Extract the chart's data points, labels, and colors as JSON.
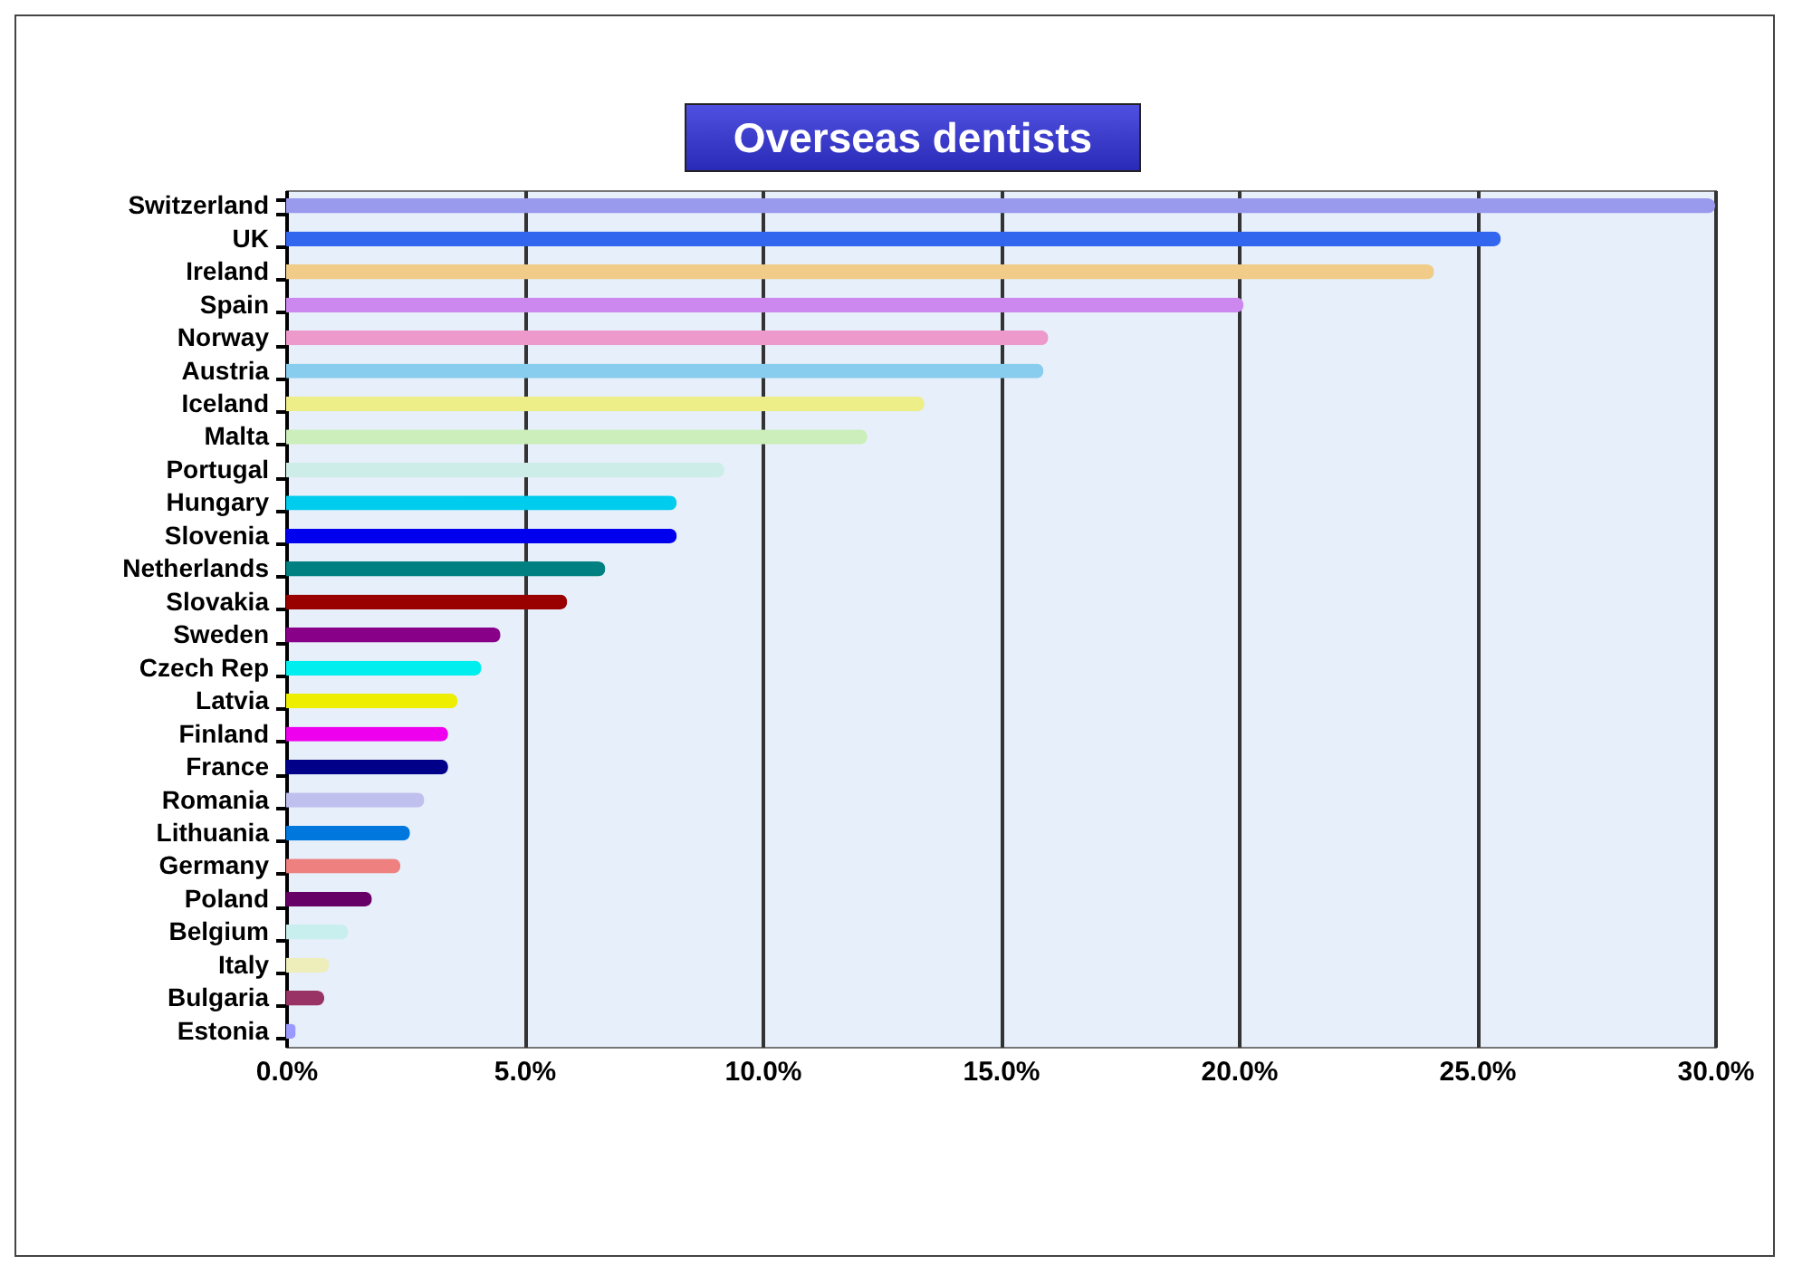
{
  "chart_data": {
    "type": "bar",
    "title": "Overseas dentists",
    "orientation": "horizontal",
    "categories": [
      "Switzerland",
      "UK",
      "Ireland",
      "Spain",
      "Norway",
      "Austria",
      "Iceland",
      "Malta",
      "Portugal",
      "Hungary",
      "Slovenia",
      "Netherlands",
      "Slovakia",
      "Sweden",
      "Czech Rep",
      "Latvia",
      "Finland",
      "France",
      "Romania",
      "Lithuania",
      "Germany",
      "Poland",
      "Belgium",
      "Italy",
      "Bulgaria",
      "Estonia"
    ],
    "values": [
      30.0,
      25.5,
      24.1,
      20.1,
      16.0,
      15.9,
      13.4,
      12.2,
      9.2,
      8.2,
      8.2,
      6.7,
      5.9,
      4.5,
      4.1,
      3.6,
      3.4,
      3.4,
      2.9,
      2.6,
      2.4,
      1.8,
      1.3,
      0.9,
      0.8,
      0.2
    ],
    "colors": [
      "#9999ee",
      "#3366ee",
      "#f0cc88",
      "#cc88ee",
      "#ee99cc",
      "#88ccee",
      "#eeee88",
      "#cceebb",
      "#cdeee8",
      "#00ccee",
      "#0000ee",
      "#008080",
      "#990000",
      "#880088",
      "#00eeee",
      "#eeee00",
      "#ee00ee",
      "#000088",
      "#c0c0ee",
      "#0077dd",
      "#ee8080",
      "#660066",
      "#c8eeee",
      "#eeeebb",
      "#993366",
      "#9999ff"
    ],
    "xlim": [
      0,
      30
    ],
    "xticks": [
      {
        "value": 0,
        "label": "0.0%"
      },
      {
        "value": 5,
        "label": "5.0%"
      },
      {
        "value": 10,
        "label": "10.0%"
      },
      {
        "value": 15,
        "label": "15.0%"
      },
      {
        "value": 20,
        "label": "20.0%"
      },
      {
        "value": 25,
        "label": "25.0%"
      },
      {
        "value": 30,
        "label": "30.0%"
      }
    ],
    "grid": "x"
  }
}
